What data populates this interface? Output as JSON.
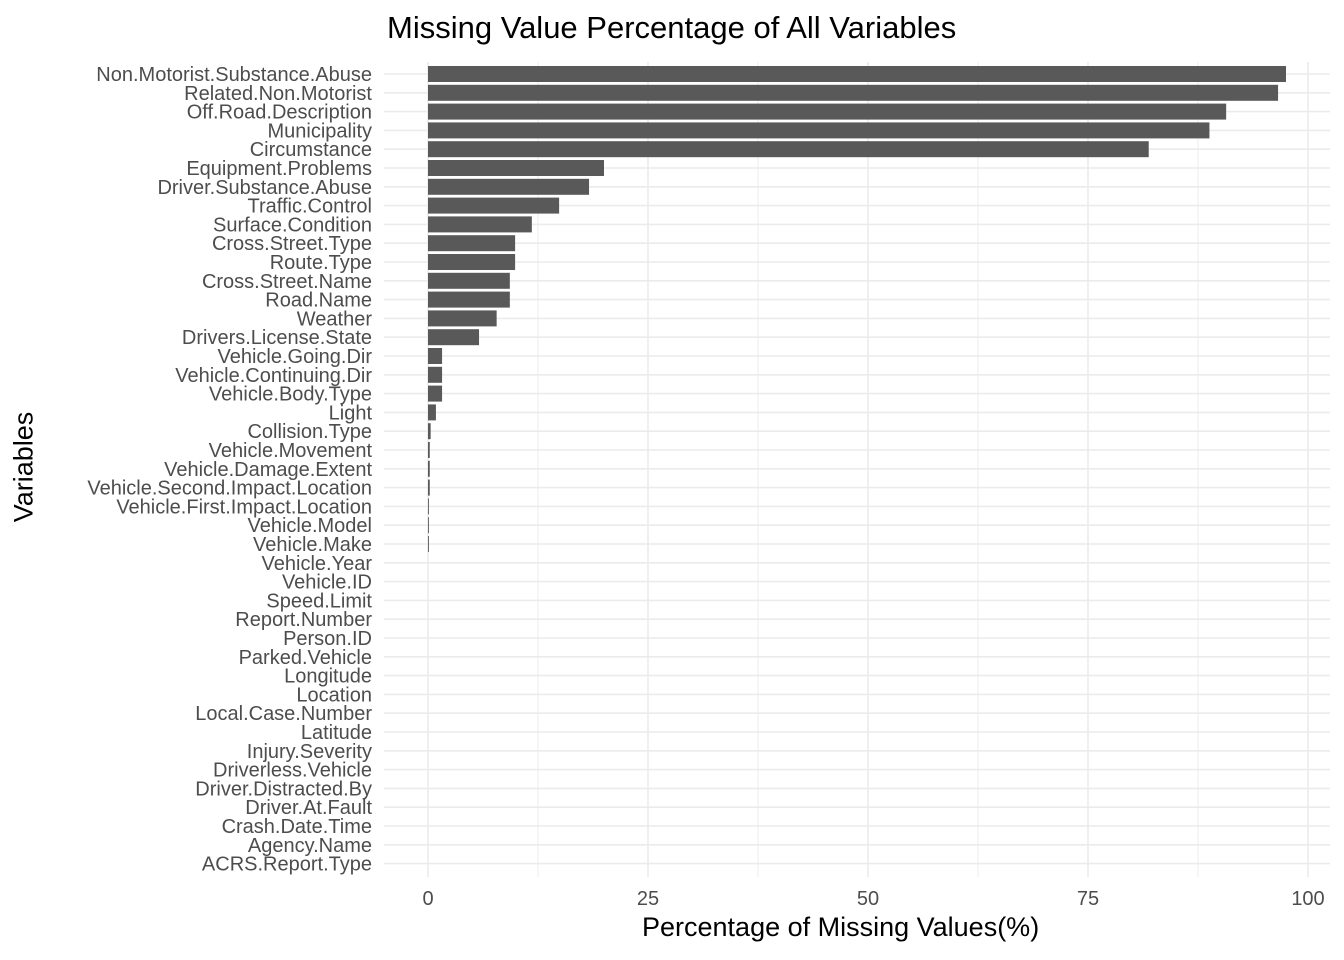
{
  "chart_data": {
    "type": "bar",
    "orientation": "horizontal",
    "title": "Missing Value Percentage of All Variables",
    "xlabel": "Percentage of Missing Values(%)",
    "ylabel": "Variables",
    "xlim": [
      0,
      100
    ],
    "x_ticks": [
      "0",
      "25",
      "50",
      "75",
      "100"
    ],
    "grid": true,
    "bar_color": "#595959",
    "grid_color": "#ebebeb",
    "categories": [
      "Non.Motorist.Substance.Abuse",
      "Related.Non.Motorist",
      "Off.Road.Description",
      "Municipality",
      "Circumstance",
      "Equipment.Problems",
      "Driver.Substance.Abuse",
      "Traffic.Control",
      "Surface.Condition",
      "Cross.Street.Type",
      "Route.Type",
      "Cross.Street.Name",
      "Road.Name",
      "Weather",
      "Drivers.License.State",
      "Vehicle.Going.Dir",
      "Vehicle.Continuing.Dir",
      "Vehicle.Body.Type",
      "Light",
      "Collision.Type",
      "Vehicle.Movement",
      "Vehicle.Damage.Extent",
      "Vehicle.Second.Impact.Location",
      "Vehicle.First.Impact.Location",
      "Vehicle.Model",
      "Vehicle.Make",
      "Vehicle.Year",
      "Vehicle.ID",
      "Speed.Limit",
      "Report.Number",
      "Person.ID",
      "Parked.Vehicle",
      "Longitude",
      "Location",
      "Local.Case.Number",
      "Latitude",
      "Injury.Severity",
      "Driverless.Vehicle",
      "Driver.Distracted.By",
      "Driver.At.Fault",
      "Crash.Date.Time",
      "Agency.Name",
      "ACRS.Report.Type"
    ],
    "values": [
      97.5,
      96.6,
      90.7,
      88.8,
      81.9,
      20.0,
      18.3,
      14.9,
      11.8,
      9.9,
      9.9,
      9.3,
      9.3,
      7.8,
      5.8,
      1.6,
      1.6,
      1.6,
      0.9,
      0.3,
      0.2,
      0.2,
      0.2,
      0.1,
      0.1,
      0.1,
      0,
      0,
      0,
      0,
      0,
      0,
      0,
      0,
      0,
      0,
      0,
      0,
      0,
      0,
      0,
      0,
      0
    ]
  }
}
